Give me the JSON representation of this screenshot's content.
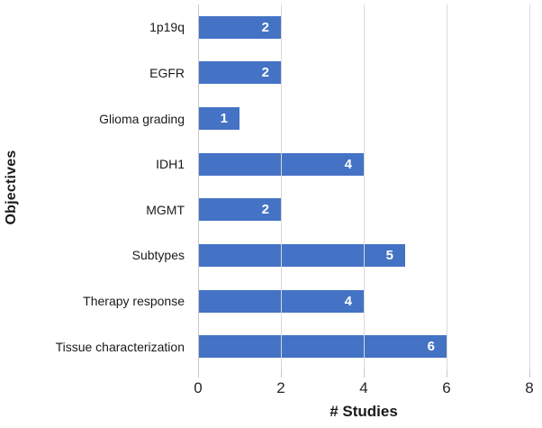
{
  "chart_data": {
    "type": "bar",
    "orientation": "horizontal",
    "title": "",
    "xlabel": "# Studies",
    "ylabel": "Objectives",
    "categories": [
      "1p19q",
      "EGFR",
      "Glioma grading",
      "IDH1",
      "MGMT",
      "Subtypes",
      "Therapy response",
      "Tissue characterization"
    ],
    "values": [
      2,
      2,
      1,
      4,
      2,
      5,
      4,
      6
    ],
    "value_labels": [
      "2",
      "2",
      "1",
      "4",
      "2",
      "5",
      "4",
      "6"
    ],
    "xlim": [
      0,
      8
    ],
    "xticks": [
      0,
      2,
      4,
      6,
      8
    ],
    "xtick_labels": [
      "0",
      "2",
      "4",
      "6",
      "8"
    ],
    "grid": "vertical-only",
    "legend_position": "none",
    "colors": {
      "bar": "#4472c4",
      "value_label": "#ffffff",
      "gridline": "#d9d9d9",
      "axis_line": "#c8c8c8",
      "text": "#1a1a1a",
      "background": "#ffffff"
    }
  }
}
